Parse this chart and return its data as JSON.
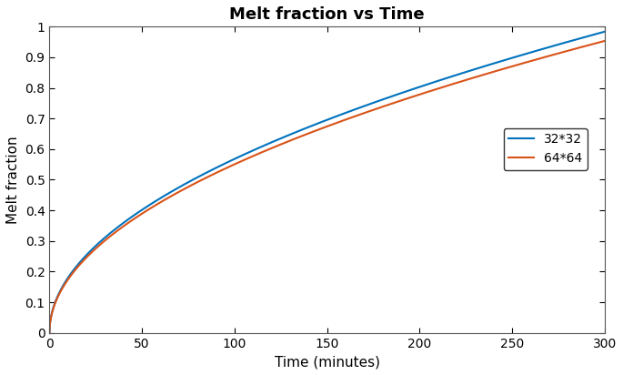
{
  "title": "Melt fraction vs Time",
  "xlabel": "Time (minutes)",
  "ylabel": "Melt fraction",
  "xlim": [
    0,
    300
  ],
  "ylim": [
    0,
    1.0
  ],
  "xticks": [
    0,
    50,
    100,
    150,
    200,
    250,
    300
  ],
  "yticks": [
    0,
    0.1,
    0.2,
    0.3,
    0.4,
    0.5,
    0.6,
    0.7,
    0.8,
    0.9,
    1.0
  ],
  "yticklabels": [
    "0",
    "0.1",
    "0.2",
    "0.3",
    "0.4",
    "0.5",
    "0.6",
    "0.7",
    "0.8",
    "0.9",
    "1"
  ],
  "line1_label": "32*32",
  "line1_color": "#0072BD",
  "line2_label": "64*64",
  "line2_color": "#D95319",
  "t_max": 300,
  "n_points": 2000,
  "line1_exponent": 0.5,
  "line1_stretch": 310,
  "line2_exponent": 0.5,
  "line2_stretch": 330,
  "title_fontsize": 13,
  "label_fontsize": 11,
  "tick_fontsize": 10,
  "linewidth": 1.5,
  "legend_fontsize": 10,
  "background_color": "#ffffff"
}
